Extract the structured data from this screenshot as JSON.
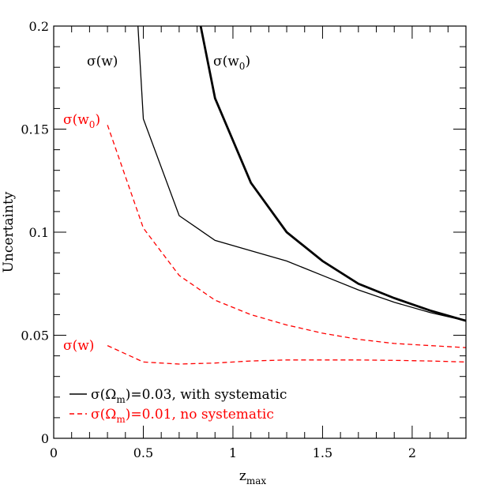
{
  "chart_data": {
    "type": "line",
    "xlabel": "z",
    "xlabel_sub": "max",
    "ylabel": "Uncertainty",
    "xlim": [
      0,
      2.3
    ],
    "ylim": [
      0,
      0.2
    ],
    "xticks": [
      {
        "value": 0,
        "label": "0"
      },
      {
        "value": 0.5,
        "label": "0.5"
      },
      {
        "value": 1,
        "label": "1"
      },
      {
        "value": 1.5,
        "label": "1.5"
      },
      {
        "value": 2,
        "label": "2"
      }
    ],
    "yticks": [
      {
        "value": 0,
        "label": "0"
      },
      {
        "value": 0.05,
        "label": "0.05"
      },
      {
        "value": 0.1,
        "label": "0.1"
      },
      {
        "value": 0.15,
        "label": "0.15"
      },
      {
        "value": 0.2,
        "label": "0.2"
      }
    ],
    "grid": false,
    "series": [
      {
        "label_main": "σ(w)",
        "label_sub": "",
        "color": "#000000",
        "style": "solid",
        "weight": "thin",
        "x": [
          0.47,
          0.5,
          0.7,
          0.9,
          1.1,
          1.3,
          1.5,
          1.7,
          1.9,
          2.1,
          2.3
        ],
        "y": [
          0.2,
          0.155,
          0.108,
          0.096,
          0.091,
          0.086,
          0.079,
          0.072,
          0.066,
          0.061,
          0.057
        ]
      },
      {
        "label_main": "σ(w",
        "label_sub": "0",
        "color": "#000000",
        "style": "solid",
        "weight": "thick",
        "x": [
          0.82,
          0.9,
          1.1,
          1.3,
          1.5,
          1.7,
          1.9,
          2.1,
          2.3
        ],
        "y": [
          0.2,
          0.165,
          0.124,
          0.1,
          0.086,
          0.075,
          0.068,
          0.062,
          0.057
        ]
      },
      {
        "label_main": "σ(w",
        "label_sub": "0",
        "color": "#ff0000",
        "style": "dashed",
        "weight": "thin",
        "x": [
          0.3,
          0.5,
          0.7,
          0.9,
          1.1,
          1.3,
          1.5,
          1.7,
          1.9,
          2.1,
          2.3
        ],
        "y": [
          0.152,
          0.102,
          0.079,
          0.067,
          0.06,
          0.055,
          0.051,
          0.048,
          0.046,
          0.045,
          0.044
        ]
      },
      {
        "label_main": "σ(w)",
        "label_sub": "",
        "color": "#ff0000",
        "style": "dashed",
        "weight": "thin",
        "x": [
          0.3,
          0.5,
          0.7,
          0.9,
          1.1,
          1.3,
          1.5,
          1.7,
          1.9,
          2.1,
          2.3
        ],
        "y": [
          0.045,
          0.037,
          0.036,
          0.0365,
          0.0375,
          0.038,
          0.038,
          0.038,
          0.0378,
          0.0375,
          0.037
        ]
      }
    ],
    "legend": {
      "position": "bottom-left",
      "entries": [
        {
          "color": "#000000",
          "style": "solid",
          "pre": "σ(Ω",
          "sub": "m",
          "post": ")=0.03, with systematic"
        },
        {
          "color": "#ff0000",
          "style": "dashed",
          "pre": "σ(Ω",
          "sub": "m",
          "post": ")=0.01, no systematic"
        }
      ]
    }
  }
}
